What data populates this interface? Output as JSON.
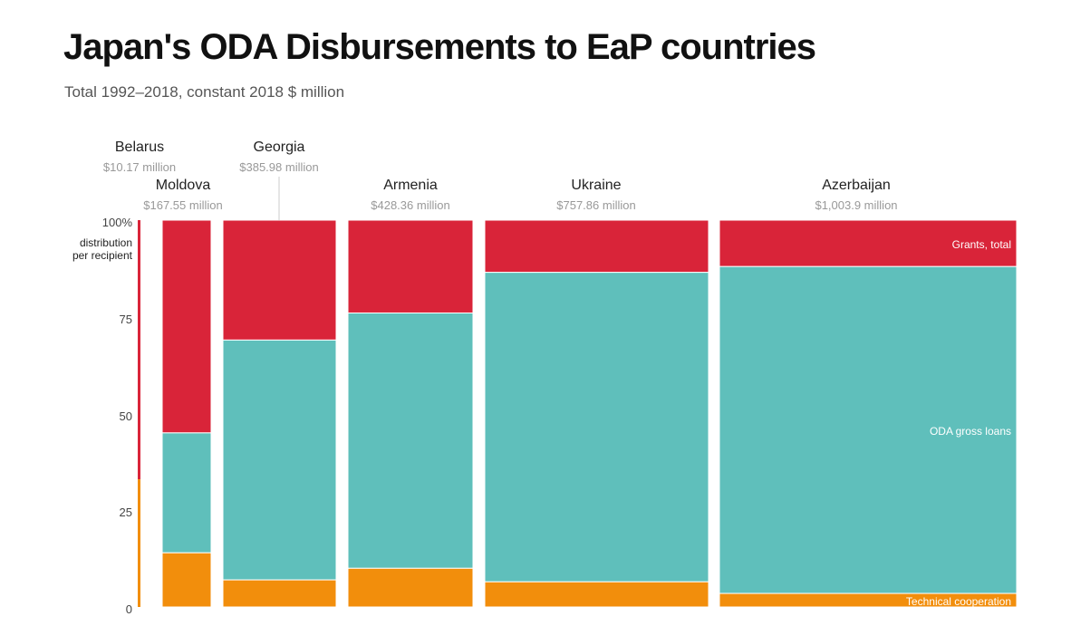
{
  "header": {
    "title": "Japan's ODA Disbursements to EaP countries",
    "subtitle": "Total 1992–2018, constant 2018 $ million"
  },
  "colors": {
    "grants": "#d92439",
    "loans": "#5fbfbb",
    "technical": "#f28e0c"
  },
  "chart_data": {
    "type": "marimekko",
    "title": "Japan's ODA Disbursements to EaP countries",
    "subtitle": "Total 1992–2018, constant 2018 $ million",
    "ylabel": "distribution per recipient",
    "ylim": [
      0,
      100
    ],
    "yticks": [
      "100%",
      "75",
      "50",
      "25",
      "0"
    ],
    "series": [
      {
        "name": "Grants, total"
      },
      {
        "name": "ODA gross loans"
      },
      {
        "name": "Technical cooperation"
      }
    ],
    "countries": [
      {
        "name": "Belarus",
        "value_label": "$10.17 million",
        "total": 10.17,
        "grants": 67,
        "loans": 0,
        "technical": 33
      },
      {
        "name": "Moldova",
        "value_label": "$167.55 million",
        "total": 167.55,
        "grants": 55,
        "loans": 31,
        "technical": 14
      },
      {
        "name": "Georgia",
        "value_label": "$385.98 million",
        "total": 385.98,
        "grants": 31,
        "loans": 62,
        "technical": 7
      },
      {
        "name": "Armenia",
        "value_label": "$428.36 million",
        "total": 428.36,
        "grants": 24,
        "loans": 66,
        "technical": 10
      },
      {
        "name": "Ukraine",
        "value_label": "$757.86 million",
        "total": 757.86,
        "grants": 13.5,
        "loans": 80,
        "technical": 6.5
      },
      {
        "name": "Azerbaijan",
        "value_label": "$1,003.9 million",
        "total": 1003.9,
        "grants": 12,
        "loans": 84.5,
        "technical": 3.5
      }
    ]
  }
}
